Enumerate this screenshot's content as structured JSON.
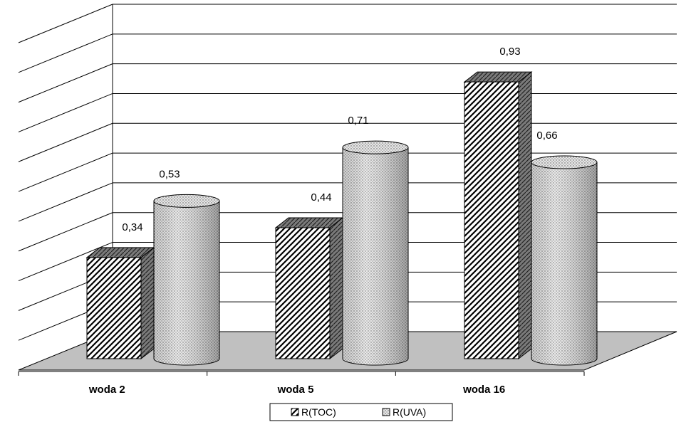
{
  "chart_data": {
    "type": "bar",
    "categories": [
      "woda 2",
      "woda 5",
      "woda 16"
    ],
    "series": [
      {
        "name": "R(TOC)",
        "values": [
          0.34,
          0.44,
          0.93
        ],
        "labels": [
          "0,34",
          "0,44",
          "0,93"
        ],
        "shape": "box",
        "pattern": "diagonal-hatch"
      },
      {
        "name": "R(UVA)",
        "values": [
          0.53,
          0.71,
          0.66
        ],
        "labels": [
          "0,53",
          "0,71",
          "0,66"
        ],
        "shape": "cylinder",
        "pattern": "dots"
      }
    ],
    "ylim": [
      0,
      1.1
    ],
    "grid": true,
    "legend_position": "bottom",
    "colors": {
      "floor": "#c0c0c0",
      "box_side": "#808080",
      "grid": "#000000"
    }
  }
}
